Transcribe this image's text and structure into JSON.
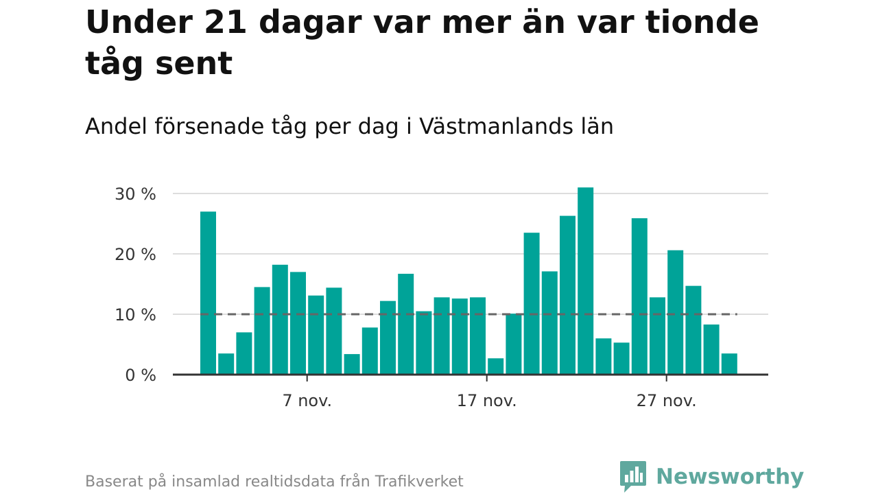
{
  "header": {
    "title": "Under 21 dagar var mer än var tionde tåg sent",
    "subtitle": "Andel försenade tåg per dag i Västmanlands län"
  },
  "footer": {
    "source": "Baserat på insamlad realtidsdata från Trafikverket",
    "brand": "Newsworthy"
  },
  "colors": {
    "bar": "#00a398",
    "grid": "#dddddd",
    "axis": "#333333",
    "reference": "#666666",
    "brand": "#5fa89e"
  },
  "chart_data": {
    "type": "bar",
    "x": [
      1,
      2,
      3,
      4,
      5,
      6,
      7,
      8,
      9,
      10,
      11,
      12,
      13,
      14,
      15,
      16,
      17,
      18,
      19,
      20,
      21,
      22,
      23,
      24,
      25,
      26,
      27,
      28,
      29,
      30
    ],
    "values": [
      27,
      3.5,
      7,
      14.5,
      18.2,
      17,
      13.1,
      14.4,
      3.4,
      7.8,
      12.2,
      16.7,
      10.5,
      12.8,
      12.6,
      12.8,
      2.7,
      10.1,
      23.5,
      17.1,
      26.3,
      31,
      6,
      5.3,
      25.9,
      12.8,
      20.6,
      14.7,
      8.3,
      3.5
    ],
    "xticks": [
      {
        "x": 7,
        "label": "7 nov."
      },
      {
        "x": 17,
        "label": "17 nov."
      },
      {
        "x": 27,
        "label": "27 nov."
      }
    ],
    "yticks": [
      {
        "value": 0,
        "label": "0 %"
      },
      {
        "value": 10,
        "label": "10 %"
      },
      {
        "value": 20,
        "label": "20 %"
      },
      {
        "value": 30,
        "label": "30 %"
      }
    ],
    "ylim": [
      0,
      31
    ],
    "reference_line": 10,
    "grid": true,
    "xlabel": "",
    "ylabel": ""
  }
}
